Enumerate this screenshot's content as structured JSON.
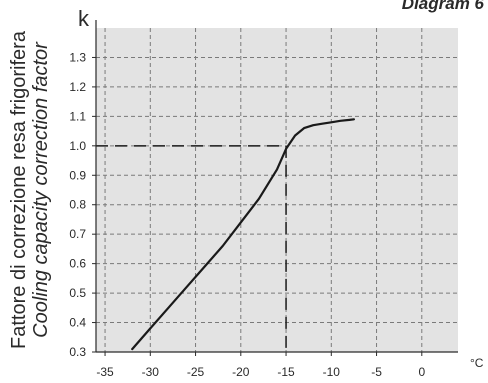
{
  "chart_data": {
    "type": "line",
    "title": "Diagram 6",
    "y_symbol": "k",
    "ylabel_it": "Fattore di correzione resa frigorifera",
    "ylabel_en": "Cooling capacity correction factor",
    "x_unit": "°C",
    "xlim": [
      -36,
      4
    ],
    "ylim": [
      0.3,
      1.4
    ],
    "x_ticks": [
      -35,
      -30,
      -25,
      -20,
      -15,
      -10,
      -5,
      0
    ],
    "y_ticks": [
      0.3,
      0.4,
      0.5,
      0.6,
      0.7,
      0.8,
      0.9,
      1.0,
      1.1,
      1.2,
      1.3
    ],
    "grid": true,
    "series": [
      {
        "x": [
          -32,
          -30,
          -28,
          -26,
          -24,
          -22,
          -20,
          -18,
          -16,
          -15,
          -14,
          -13,
          -12,
          -11,
          -10,
          -9,
          -8,
          -7.5
        ],
        "y": [
          0.31,
          0.38,
          0.45,
          0.52,
          0.59,
          0.66,
          0.74,
          0.82,
          0.92,
          0.99,
          1.035,
          1.06,
          1.07,
          1.075,
          1.08,
          1.085,
          1.088,
          1.09
        ]
      }
    ],
    "reference": {
      "x": -15,
      "y": 1.0
    },
    "colors": {
      "plot_background": "#e3e3e3",
      "grid": "#7a7a7a",
      "curve": "#1a1a1a",
      "axis": "#2a2a2a"
    }
  }
}
